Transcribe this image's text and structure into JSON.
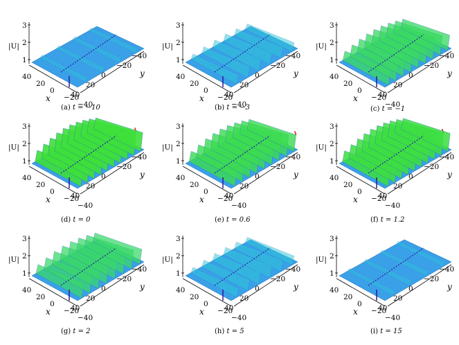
{
  "figure": {
    "panels": [
      {
        "label": "(a)",
        "t_expr": "t = −10",
        "z_ticks": [
          "3",
          "2",
          "1"
        ],
        "x_ticks": [
          "40",
          "20",
          "0",
          "−20",
          "−40"
        ],
        "y_ticks": [
          "−40",
          "−20",
          "0",
          "20",
          "40"
        ],
        "x_label": "x",
        "y_label": "y",
        "z_label": "|U|",
        "intensity": 0.05
      },
      {
        "label": "(b)",
        "t_expr": "t = −3",
        "z_ticks": [
          "3",
          "2",
          "1"
        ],
        "x_ticks": [
          "40",
          "20",
          "0",
          "−20",
          "−40"
        ],
        "y_ticks": [
          "−40",
          "−20",
          "0",
          "20",
          "40"
        ],
        "x_label": "x",
        "y_label": "y",
        "z_label": "|U|",
        "intensity": 0.3
      },
      {
        "label": "(c)",
        "t_expr": "t = −1",
        "z_ticks": [
          "3",
          "2",
          "1"
        ],
        "x_ticks": [
          "40",
          "20",
          "0",
          "−20",
          "−40"
        ],
        "y_ticks": [
          "−40",
          "−20",
          "0",
          "20",
          "40"
        ],
        "x_label": "x",
        "y_label": "y",
        "z_label": "|U|",
        "intensity": 0.75
      },
      {
        "label": "(d)",
        "t_expr": "t = 0",
        "z_ticks": [
          "3",
          "2",
          "1"
        ],
        "x_ticks": [
          "40",
          "20",
          "0",
          "−20",
          "−40"
        ],
        "y_ticks": [
          "−40",
          "−20",
          "0",
          "20",
          "40"
        ],
        "x_label": "x",
        "y_label": "y",
        "z_label": "|U|",
        "intensity": 1.0
      },
      {
        "label": "(e)",
        "t_expr": "t = 0.6",
        "z_ticks": [
          "3",
          "2",
          "1"
        ],
        "x_ticks": [
          "40",
          "20",
          "0",
          "−20",
          "−40"
        ],
        "y_ticks": [
          "−40",
          "−20",
          "0",
          "20",
          "40"
        ],
        "x_label": "x",
        "y_label": "y",
        "z_label": "|U|",
        "intensity": 0.85
      },
      {
        "label": "(f)",
        "t_expr": "t = 1.2",
        "z_ticks": [
          "3",
          "2",
          "1"
        ],
        "x_ticks": [
          "40",
          "20",
          "0",
          "−20",
          "−40"
        ],
        "y_ticks": [
          "−40",
          "−20",
          "0",
          "20",
          "40"
        ],
        "x_label": "x",
        "y_label": "y",
        "z_label": "|U|",
        "intensity": 0.95
      },
      {
        "label": "(g)",
        "t_expr": "t = 2",
        "z_ticks": [
          "3",
          "2",
          "1"
        ],
        "x_ticks": [
          "40",
          "20",
          "0",
          "−20",
          "−40"
        ],
        "y_ticks": [
          "−40",
          "−20",
          "0",
          "20",
          "40"
        ],
        "x_label": "x",
        "y_label": "y",
        "z_label": "|U|",
        "intensity": 0.7
      },
      {
        "label": "(h)",
        "t_expr": "t = 5",
        "z_ticks": [
          "3",
          "2",
          "1"
        ],
        "x_ticks": [
          "40",
          "20",
          "0",
          "−20",
          "−40"
        ],
        "y_ticks": [
          "−40",
          "−20",
          "0",
          "20",
          "40"
        ],
        "x_label": "x",
        "y_label": "y",
        "z_label": "|U|",
        "intensity": 0.3
      },
      {
        "label": "(i)",
        "t_expr": "t = 15",
        "z_ticks": [
          "3",
          "2",
          "1"
        ],
        "x_ticks": [
          "40",
          "20",
          "0",
          "−20",
          "−40"
        ],
        "y_ticks": [
          "−40",
          "−20",
          "0",
          "20",
          "40"
        ],
        "x_label": "x",
        "y_label": "y",
        "z_label": "|U|",
        "intensity": 0.05
      }
    ],
    "colors": {
      "base": "#3aa0e8",
      "low": "#2a1aa0",
      "mid": "#2ec7d8",
      "high": "#3ee03a",
      "peak": "#d8281a"
    }
  }
}
